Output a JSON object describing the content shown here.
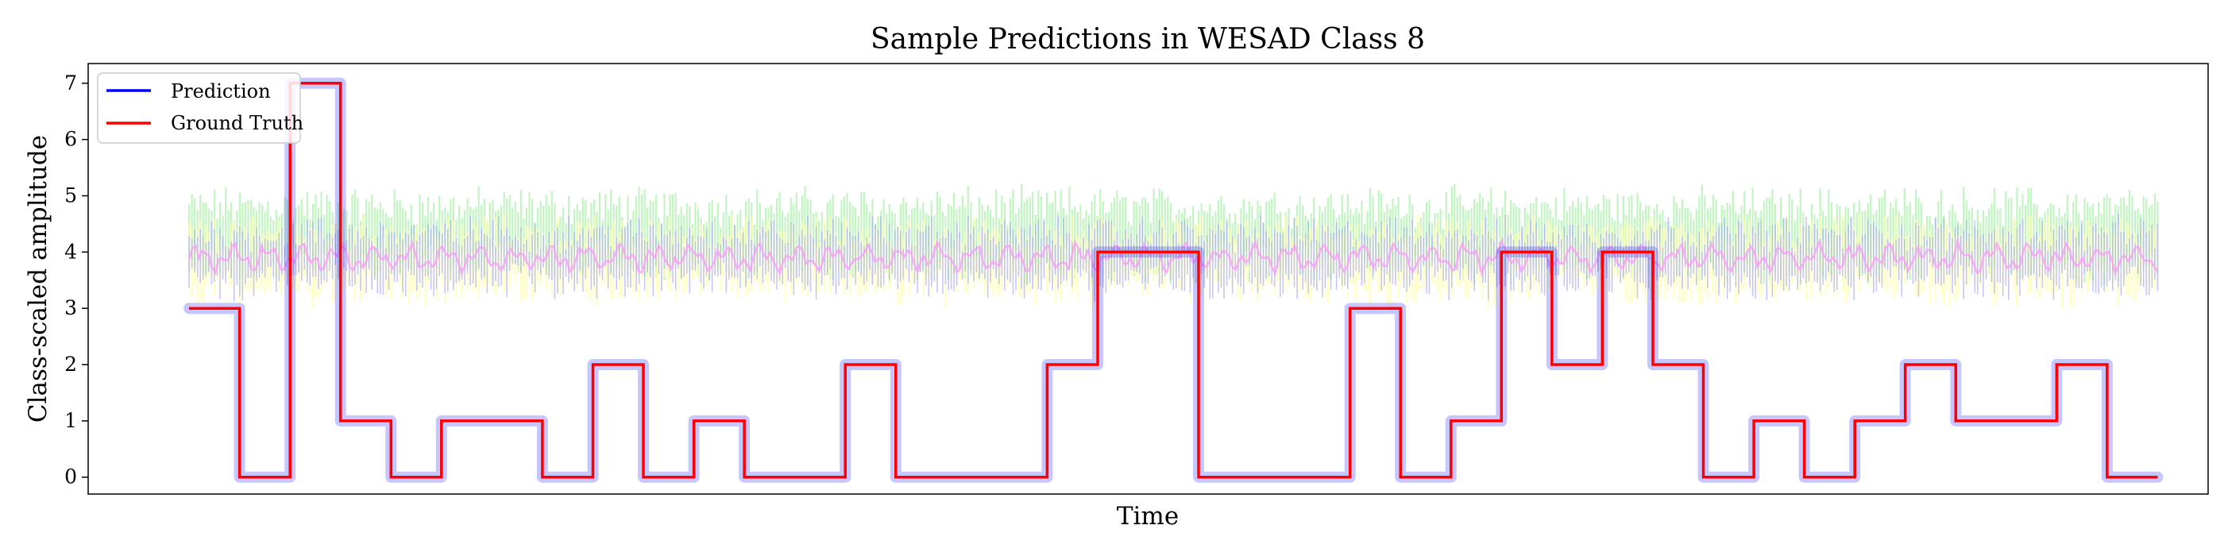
{
  "chart_data": {
    "type": "line",
    "title": "Sample Predictions in WESAD Class 8",
    "xlabel": "Time",
    "ylabel": "Class-scaled amplitude",
    "ylim": [
      -0.3,
      7.35
    ],
    "yticks": [
      0,
      1,
      2,
      3,
      4,
      5,
      6,
      7
    ],
    "xlim": [
      -20,
      400
    ],
    "grid": false,
    "legend_position": "top-left",
    "series": [
      {
        "name": "Prediction",
        "color": "#0000ff",
        "steps": [
          [
            0,
            3
          ],
          [
            10,
            0
          ],
          [
            20,
            7
          ],
          [
            30,
            1
          ],
          [
            40,
            0
          ],
          [
            50,
            1
          ],
          [
            70,
            0
          ],
          [
            80,
            2
          ],
          [
            90,
            0
          ],
          [
            100,
            1
          ],
          [
            110,
            0
          ],
          [
            130,
            2
          ],
          [
            140,
            0
          ],
          [
            170,
            2
          ],
          [
            180,
            4
          ],
          [
            200,
            0
          ],
          [
            230,
            3
          ],
          [
            240,
            0
          ],
          [
            250,
            1
          ],
          [
            260,
            4
          ],
          [
            270,
            2
          ],
          [
            280,
            4
          ],
          [
            290,
            2
          ],
          [
            300,
            0
          ],
          [
            310,
            1
          ],
          [
            320,
            0
          ],
          [
            330,
            1
          ],
          [
            340,
            2
          ],
          [
            350,
            1
          ],
          [
            370,
            2
          ],
          [
            380,
            0
          ],
          [
            390,
            0
          ]
        ]
      },
      {
        "name": "Ground Truth",
        "color": "#ff0000",
        "steps": [
          [
            0,
            3
          ],
          [
            10,
            0
          ],
          [
            20,
            7
          ],
          [
            30,
            1
          ],
          [
            40,
            0
          ],
          [
            50,
            1
          ],
          [
            70,
            0
          ],
          [
            80,
            2
          ],
          [
            90,
            0
          ],
          [
            100,
            1
          ],
          [
            110,
            0
          ],
          [
            130,
            2
          ],
          [
            140,
            0
          ],
          [
            170,
            2
          ],
          [
            180,
            4
          ],
          [
            200,
            0
          ],
          [
            230,
            3
          ],
          [
            240,
            0
          ],
          [
            250,
            1
          ],
          [
            260,
            4
          ],
          [
            270,
            2
          ],
          [
            280,
            4
          ],
          [
            290,
            2
          ],
          [
            300,
            0
          ],
          [
            310,
            1
          ],
          [
            320,
            0
          ],
          [
            330,
            1
          ],
          [
            340,
            2
          ],
          [
            350,
            1
          ],
          [
            370,
            2
          ],
          [
            380,
            0
          ],
          [
            390,
            0
          ]
        ]
      }
    ],
    "background_signals": [
      {
        "color": "#99ee99",
        "center": 4.3,
        "spread": 0.6
      },
      {
        "color": "#ffff99",
        "center": 3.85,
        "spread": 0.55
      },
      {
        "color": "#9999ff",
        "center": 3.9,
        "spread": 0.5
      },
      {
        "color": "#ff99ff",
        "center": 3.9,
        "spread": 0.2
      }
    ]
  }
}
